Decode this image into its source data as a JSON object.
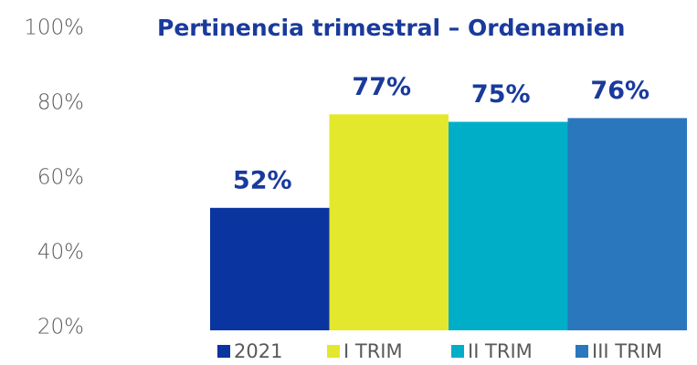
{
  "chart_data": {
    "type": "bar",
    "title": "Pertinencia trimestral – Ordenamien",
    "series": [
      {
        "name": "2021",
        "color": "#0a34a0",
        "values": [
          52
        ],
        "value_labels": [
          "52%"
        ]
      },
      {
        "name": "I TRIM",
        "color": "#e3e82c",
        "values": [
          77
        ],
        "value_labels": [
          "77%"
        ]
      },
      {
        "name": "II TRIM",
        "color": "#00aec7",
        "values": [
          75
        ],
        "value_labels": [
          "75%"
        ]
      },
      {
        "name": "III TRIM",
        "color": "#2a77bd",
        "values": [
          76
        ],
        "value_labels": [
          "76%"
        ]
      }
    ],
    "ylim": [
      20,
      100
    ],
    "yticks": [
      {
        "value": 20,
        "label": "20%"
      },
      {
        "value": 40,
        "label": "40%"
      },
      {
        "value": 60,
        "label": "60%"
      },
      {
        "value": 80,
        "label": "80%"
      },
      {
        "value": 100,
        "label": "100%"
      }
    ],
    "legend": "bottom"
  }
}
